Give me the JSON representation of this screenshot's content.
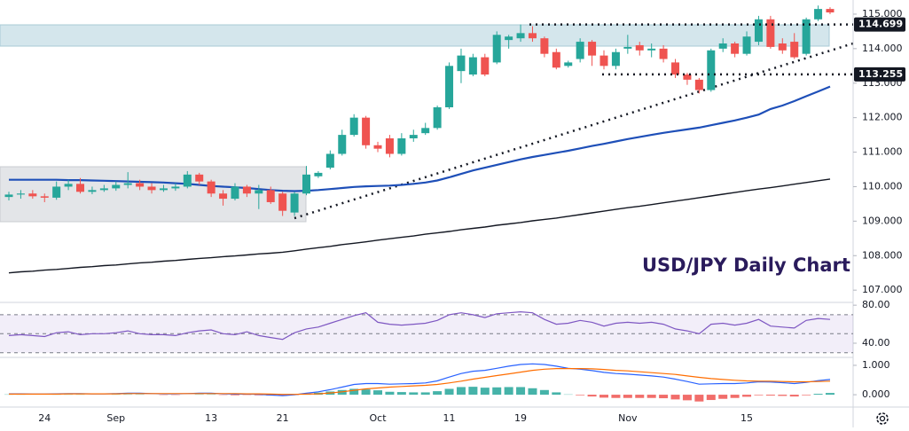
{
  "chart_data": [
    {
      "type": "candlestick",
      "title": "USD/JPY Daily Chart",
      "categories": [
        null,
        null,
        null,
        "24",
        null,
        null,
        null,
        null,
        null,
        "Sep",
        null,
        null,
        null,
        null,
        null,
        null,
        null,
        "13",
        null,
        null,
        null,
        null,
        null,
        "21",
        null,
        null,
        null,
        null,
        null,
        null,
        null,
        "Oct",
        null,
        null,
        null,
        null,
        null,
        "11",
        null,
        null,
        null,
        null,
        null,
        "19",
        null,
        null,
        null,
        null,
        null,
        null,
        null,
        null,
        "Nov",
        null,
        null,
        null,
        null,
        null,
        null,
        null,
        null,
        null,
        "15",
        null,
        null,
        null,
        null,
        null,
        null,
        null
      ],
      "open": [
        109.7,
        109.77,
        109.8,
        109.72,
        109.68,
        110.0,
        110.08,
        109.85,
        109.9,
        109.95,
        110.05,
        110.1,
        110.0,
        109.9,
        109.95,
        110.0,
        110.35,
        110.15,
        109.8,
        109.65,
        110.0,
        109.8,
        109.9,
        109.8,
        109.25,
        109.8,
        110.3,
        110.55,
        110.95,
        111.5,
        112.0,
        111.2,
        111.4,
        110.95,
        111.4,
        111.55,
        111.7,
        112.3,
        113.35,
        113.25,
        113.75,
        113.6,
        114.25,
        114.3,
        114.45,
        114.3,
        113.9,
        113.5,
        113.7,
        114.2,
        113.8,
        113.5,
        114.0,
        114.1,
        113.95,
        114.0,
        113.6,
        113.25,
        113.1,
        112.8,
        114.0,
        114.15,
        113.85,
        114.2,
        114.85,
        114.15,
        114.2,
        113.85,
        114.85,
        115.15
      ],
      "high": [
        109.85,
        109.9,
        109.9,
        109.8,
        110.15,
        110.2,
        110.25,
        110.0,
        110.05,
        110.15,
        110.42,
        110.2,
        110.1,
        110.05,
        110.1,
        110.45,
        110.4,
        110.2,
        109.9,
        110.1,
        110.05,
        110.05,
        110.0,
        109.85,
        109.85,
        110.6,
        110.45,
        111.05,
        111.65,
        112.1,
        112.05,
        111.3,
        111.5,
        111.55,
        111.65,
        111.85,
        112.35,
        113.6,
        114.0,
        113.85,
        113.85,
        114.5,
        114.4,
        114.7,
        114.65,
        114.35,
        114.0,
        113.65,
        114.3,
        114.25,
        113.95,
        114.0,
        114.4,
        114.2,
        114.15,
        114.1,
        113.7,
        113.3,
        113.15,
        114.0,
        114.3,
        114.2,
        114.5,
        114.95,
        114.95,
        114.3,
        114.45,
        114.9,
        115.25,
        115.2
      ],
      "low": [
        109.6,
        109.65,
        109.65,
        109.55,
        109.62,
        109.9,
        109.8,
        109.78,
        109.85,
        109.88,
        109.95,
        109.9,
        109.8,
        109.85,
        109.88,
        109.95,
        110.05,
        109.7,
        109.45,
        109.6,
        109.7,
        109.35,
        109.5,
        109.15,
        109.15,
        109.75,
        110.25,
        110.5,
        110.9,
        111.45,
        111.1,
        111.0,
        110.85,
        110.9,
        111.3,
        111.5,
        111.65,
        112.25,
        113.0,
        113.2,
        113.2,
        113.55,
        114.0,
        114.2,
        114.2,
        113.75,
        113.4,
        113.45,
        113.6,
        113.5,
        113.4,
        113.4,
        113.85,
        113.8,
        113.75,
        113.6,
        113.15,
        112.95,
        112.7,
        112.75,
        113.9,
        113.75,
        113.8,
        114.1,
        114.0,
        113.85,
        113.7,
        113.8,
        114.8,
        115.0
      ],
      "close": [
        109.77,
        109.8,
        109.72,
        109.68,
        110.0,
        110.08,
        109.85,
        109.9,
        109.95,
        110.05,
        110.1,
        110.0,
        109.9,
        109.95,
        110.0,
        110.35,
        110.15,
        109.8,
        109.65,
        110.0,
        109.8,
        109.9,
        109.55,
        109.3,
        109.8,
        110.35,
        110.4,
        110.95,
        111.5,
        112.0,
        111.2,
        111.1,
        110.95,
        111.4,
        111.5,
        111.7,
        112.3,
        113.5,
        113.8,
        113.75,
        113.25,
        114.4,
        114.35,
        114.45,
        114.3,
        113.85,
        113.45,
        113.6,
        114.2,
        113.8,
        113.5,
        113.9,
        114.05,
        113.95,
        114.0,
        113.7,
        113.25,
        113.1,
        112.8,
        113.95,
        114.15,
        113.85,
        114.35,
        114.85,
        114.05,
        113.95,
        113.75,
        114.85,
        115.15,
        115.05
      ],
      "up_color": "#26a69a",
      "down_color": "#ef5350",
      "series": [
        {
          "color": "#1e4fb8",
          "values": [
            110.2,
            110.2,
            110.2,
            110.2,
            110.2,
            110.19,
            110.19,
            110.18,
            110.17,
            110.16,
            110.15,
            110.14,
            110.13,
            110.12,
            110.1,
            110.08,
            110.05,
            110.02,
            110.0,
            109.98,
            109.96,
            109.93,
            109.9,
            109.88,
            109.87,
            109.88,
            109.9,
            109.93,
            109.96,
            109.99,
            110.01,
            110.02,
            110.03,
            110.05,
            110.08,
            110.12,
            110.18,
            110.27,
            110.37,
            110.47,
            110.55,
            110.63,
            110.71,
            110.79,
            110.86,
            110.92,
            110.98,
            111.04,
            111.11,
            111.18,
            111.24,
            111.31,
            111.38,
            111.44,
            111.5,
            111.56,
            111.61,
            111.66,
            111.71,
            111.78,
            111.85,
            111.92,
            112.0,
            112.09,
            112.25,
            112.35,
            112.48,
            112.62,
            112.76,
            112.9
          ]
        },
        {
          "color": "#131722",
          "values": [
            107.5,
            107.53,
            107.55,
            107.58,
            107.6,
            107.63,
            107.66,
            107.68,
            107.71,
            107.73,
            107.76,
            107.79,
            107.81,
            107.84,
            107.86,
            107.89,
            107.92,
            107.94,
            107.97,
            107.99,
            108.02,
            108.05,
            108.07,
            108.1,
            108.14,
            108.19,
            108.23,
            108.27,
            108.32,
            108.36,
            108.4,
            108.45,
            108.49,
            108.53,
            108.57,
            108.62,
            108.66,
            108.7,
            108.75,
            108.79,
            108.83,
            108.88,
            108.92,
            108.96,
            109.01,
            109.05,
            109.09,
            109.14,
            109.19,
            109.24,
            109.29,
            109.34,
            109.39,
            109.43,
            109.48,
            109.53,
            109.58,
            109.63,
            109.68,
            109.73,
            109.78,
            109.83,
            109.88,
            109.93,
            109.97,
            110.02,
            110.07,
            110.12,
            110.17,
            110.22
          ]
        }
      ],
      "levels": [
        {
          "value": 114.699,
          "label": "114.699"
        },
        {
          "value": 113.255,
          "label": "113.255"
        }
      ],
      "ylim": [
        106.67,
        115.41
      ],
      "yticks": [
        {
          "value": 107,
          "label": "107.000"
        },
        {
          "value": 108,
          "label": "108.000"
        },
        {
          "value": 109,
          "label": "109.000"
        },
        {
          "value": 110,
          "label": "110.000"
        },
        {
          "value": 111,
          "label": "111.000"
        },
        {
          "value": 112,
          "label": "112.000"
        },
        {
          "value": 113,
          "label": "113.000"
        },
        {
          "value": 114,
          "label": "114.000"
        },
        {
          "value": 115,
          "label": "115.000"
        }
      ]
    },
    {
      "type": "line",
      "series": [
        {
          "color": "#7e57c2",
          "values": [
            48,
            49,
            48,
            47,
            51,
            52,
            49,
            50,
            50,
            51,
            53,
            50,
            49,
            49,
            48,
            51,
            53,
            54,
            50,
            49,
            52,
            48,
            46,
            44,
            51,
            55,
            57,
            61,
            65,
            69,
            72,
            62,
            60,
            59,
            60,
            61,
            64,
            70,
            72,
            70,
            67,
            71,
            72,
            73,
            72,
            65,
            60,
            61,
            64,
            62,
            58,
            61,
            62,
            61,
            62,
            60,
            55,
            53,
            50,
            60,
            61,
            59,
            61,
            65,
            58,
            57,
            56,
            64,
            66,
            65
          ]
        }
      ],
      "band": [
        30,
        70
      ],
      "midline": 50,
      "ylim": [
        26,
        82
      ],
      "yticks": [
        {
          "value": 80,
          "label": "80.00"
        },
        {
          "value": 40,
          "label": "40.00"
        }
      ]
    },
    {
      "type": "macd",
      "histogram": [
        0.01,
        0.01,
        0,
        0,
        0.01,
        0.01,
        0.01,
        0,
        0,
        0.01,
        0.01,
        0.01,
        0,
        -0.01,
        -0.01,
        0,
        0.01,
        0.01,
        -0.01,
        -0.02,
        -0.01,
        -0.02,
        -0.03,
        -0.04,
        -0.01,
        0.03,
        0.07,
        0.11,
        0.16,
        0.2,
        0.18,
        0.15,
        0.1,
        0.09,
        0.08,
        0.08,
        0.12,
        0.2,
        0.26,
        0.27,
        0.24,
        0.25,
        0.26,
        0.26,
        0.22,
        0.16,
        0.08,
        0.01,
        -0.02,
        -0.06,
        -0.1,
        -0.11,
        -0.11,
        -0.11,
        -0.11,
        -0.12,
        -0.16,
        -0.19,
        -0.23,
        -0.18,
        -0.14,
        -0.11,
        -0.07,
        -0.02,
        -0.03,
        -0.04,
        -0.06,
        -0.02,
        0.03,
        0.06
      ],
      "pos_color": "#26a69a",
      "neg_color": "#ef5350",
      "series": [
        {
          "color": "#2962ff",
          "values": [
            0.03,
            0.03,
            0.02,
            0.02,
            0.03,
            0.04,
            0.04,
            0.03,
            0.03,
            0.04,
            0.05,
            0.05,
            0.04,
            0.03,
            0.03,
            0.04,
            0.05,
            0.05,
            0.03,
            0.02,
            0.02,
            0.01,
            -0.01,
            -0.03,
            0,
            0.05,
            0.1,
            0.17,
            0.26,
            0.35,
            0.38,
            0.38,
            0.36,
            0.37,
            0.38,
            0.4,
            0.47,
            0.6,
            0.72,
            0.8,
            0.83,
            0.9,
            0.97,
            1.03,
            1.05,
            1.03,
            0.97,
            0.9,
            0.87,
            0.82,
            0.76,
            0.72,
            0.7,
            0.67,
            0.64,
            0.6,
            0.53,
            0.45,
            0.36,
            0.37,
            0.38,
            0.38,
            0.4,
            0.44,
            0.43,
            0.41,
            0.38,
            0.42,
            0.48,
            0.52
          ]
        },
        {
          "color": "#ff6d00",
          "values": [
            0.02,
            0.02,
            0.02,
            0.02,
            0.02,
            0.03,
            0.03,
            0.03,
            0.03,
            0.03,
            0.04,
            0.04,
            0.04,
            0.04,
            0.04,
            0.04,
            0.04,
            0.04,
            0.04,
            0.04,
            0.03,
            0.03,
            0.02,
            0.01,
            0.01,
            0.02,
            0.03,
            0.06,
            0.1,
            0.15,
            0.2,
            0.23,
            0.26,
            0.28,
            0.3,
            0.32,
            0.35,
            0.4,
            0.46,
            0.53,
            0.59,
            0.65,
            0.71,
            0.77,
            0.83,
            0.87,
            0.89,
            0.89,
            0.89,
            0.88,
            0.86,
            0.83,
            0.81,
            0.78,
            0.75,
            0.72,
            0.69,
            0.64,
            0.59,
            0.55,
            0.52,
            0.49,
            0.47,
            0.46,
            0.46,
            0.45,
            0.44,
            0.44,
            0.45,
            0.46
          ]
        }
      ],
      "ylim": [
        -0.39,
        1.24
      ],
      "yticks": [
        {
          "value": 1,
          "label": "1.000"
        },
        {
          "value": 0,
          "label": "0.000"
        }
      ]
    }
  ]
}
